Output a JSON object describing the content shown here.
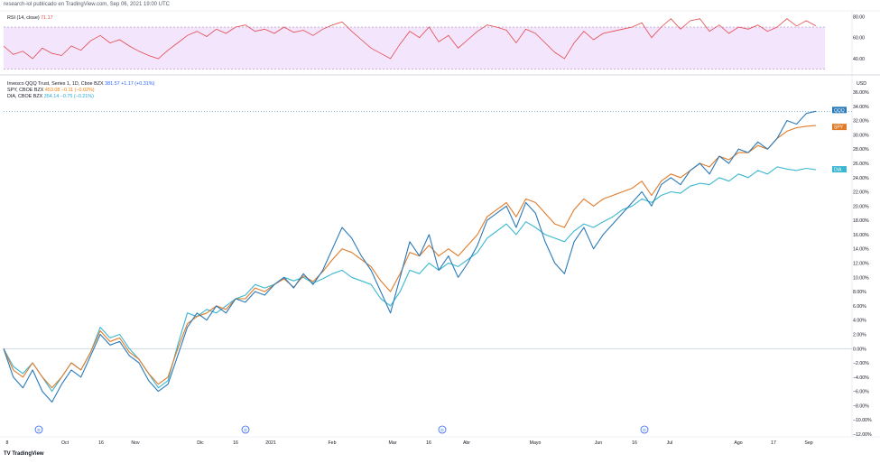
{
  "header": {
    "text": "research-iol publicado en TradingView.com, Sep 06, 2021 19:00 UTC"
  },
  "rsi_panel": {
    "label": "RSI (14, close)",
    "value": "71.17"
  },
  "legend": [
    {
      "name": "Invesco QQQ Trust, Series 1, 1D, Cboe BZX",
      "value": "381.57",
      "change": "+1.17 (+0.31%)",
      "color": "#2962ff"
    },
    {
      "name": "SPY, CBOE BZX",
      "value": "453.08",
      "change": "−0.11 (−0.02%)",
      "color": "#f57c00"
    },
    {
      "name": "DIA, CBOE BZX",
      "value": "354.14",
      "change": "−0.75 (−0.21%)",
      "color": "#26a6d9"
    }
  ],
  "axis": {
    "unit": "USD"
  },
  "footer": {
    "brand": "TradingView"
  },
  "colors": {
    "qqq": "#2b7ab8",
    "spy": "#e07b2a",
    "dia": "#3bb8d0",
    "rsi": "#e5484d",
    "rsi_fill": "#f3e5fb"
  },
  "chart_data": [
    {
      "type": "line",
      "x_ticks": [
        "8",
        "Oct",
        "16",
        "Nov",
        "Dic",
        "16",
        "2021",
        "Feb",
        "Mar",
        "16",
        "Abr",
        "Mayo",
        "Jun",
        "16",
        "Jul",
        "Ago",
        "17",
        "Sep"
      ],
      "y_ticks": [
        "34.00%",
        "32.00%",
        "30.00%",
        "28.00%",
        "26.00%",
        "24.00%",
        "22.00%",
        "20.00%",
        "18.00%",
        "16.00%",
        "14.00%",
        "12.00%",
        "10.00%",
        "8.00%",
        "6.00%",
        "4.00%",
        "2.00%",
        "0.00%",
        "−2.00%",
        "−4.00%",
        "−6.00%",
        "−8.00%",
        "−10.00%",
        "−12.00%"
      ],
      "y_top_label": "36.00%",
      "ylim": [
        -12,
        36
      ],
      "series": [
        {
          "name": "QQQ",
          "last_tag": "QQQ",
          "values": [
            0,
            -4,
            -5.5,
            -3,
            -6,
            -7.5,
            -5,
            -3,
            -4,
            -1,
            2,
            0.5,
            1,
            -1,
            -2,
            -4.5,
            -6,
            -5,
            -1,
            3,
            5,
            4,
            6,
            5,
            7,
            6.5,
            8,
            7.5,
            9,
            10,
            8.5,
            10.5,
            9,
            11,
            14,
            17,
            15.5,
            13,
            11,
            8,
            5,
            10,
            15,
            13,
            16,
            11,
            13,
            10,
            12,
            14.5,
            18,
            19,
            20,
            17,
            20.5,
            19,
            15,
            12,
            10.5,
            15,
            17,
            14,
            16,
            17.5,
            19,
            20.5,
            22,
            20,
            23,
            24,
            23,
            25,
            26,
            24.5,
            27,
            26,
            28,
            27.5,
            29,
            28,
            29.5,
            32,
            31.5,
            33,
            33.3
          ]
        },
        {
          "name": "SPY",
          "last_tag": "SPY",
          "values": [
            0,
            -3,
            -4,
            -2,
            -4,
            -5.5,
            -4,
            -2,
            -3,
            -0.5,
            2.5,
            1,
            1.5,
            -0.5,
            -1.5,
            -3.5,
            -5,
            -4,
            0,
            3.5,
            4.5,
            5,
            6,
            5.5,
            7,
            7,
            8.5,
            8,
            9,
            9.8,
            8.6,
            10.2,
            9.4,
            10.8,
            12.5,
            14,
            13.5,
            12.5,
            11.5,
            9.5,
            8,
            10.5,
            13.5,
            13,
            14.5,
            13,
            14,
            13,
            14.5,
            16,
            18.5,
            19.5,
            20.5,
            18.5,
            21,
            20.5,
            19,
            17.5,
            17,
            19.5,
            21,
            20,
            21,
            21.5,
            22,
            22.5,
            23.5,
            21.5,
            23.5,
            24.5,
            24,
            25,
            26,
            25.5,
            27,
            26.5,
            27.5,
            27.5,
            28.5,
            28,
            29.5,
            30.5,
            31,
            31.2,
            31.3
          ]
        },
        {
          "name": "DIA",
          "last_tag": "DIA",
          "values": [
            0,
            -2.5,
            -3.5,
            -2,
            -4,
            -6,
            -4,
            -2,
            -3,
            -0.5,
            3,
            1.5,
            2,
            0,
            -1.5,
            -3.5,
            -5.5,
            -4.5,
            0.5,
            5,
            4.5,
            5.5,
            5,
            6,
            7,
            7.5,
            9,
            8.5,
            9,
            10,
            9.5,
            10,
            9.2,
            9.8,
            10.5,
            11,
            10,
            9.5,
            9,
            7,
            6,
            8,
            11,
            10.5,
            12,
            11,
            12,
            11.5,
            12.5,
            13.5,
            15.5,
            16.5,
            17.5,
            16,
            17.8,
            17,
            16,
            15.5,
            15,
            16.5,
            17.5,
            17,
            17.8,
            18.5,
            19.5,
            20,
            21,
            20.5,
            21.5,
            22,
            21.8,
            22.8,
            23.2,
            23,
            24,
            23.5,
            24.5,
            24,
            25,
            24.5,
            25.5,
            25.2,
            25,
            25.3,
            25.1
          ]
        }
      ]
    },
    {
      "type": "line",
      "name": "RSI (14, close)",
      "y_ticks": [
        "80.00",
        "60.00",
        "40.00"
      ],
      "ylim": [
        28,
        82
      ],
      "band": [
        30,
        70
      ],
      "series": [
        {
          "name": "RSI",
          "values": [
            52,
            44,
            47,
            40,
            50,
            45,
            43,
            52,
            48,
            57,
            62,
            55,
            58,
            52,
            47,
            43,
            40,
            48,
            55,
            62,
            66,
            61,
            68,
            64,
            70,
            72,
            66,
            68,
            64,
            70,
            65,
            67,
            62,
            68,
            72,
            75,
            66,
            58,
            50,
            45,
            40,
            54,
            66,
            60,
            70,
            56,
            62,
            50,
            58,
            66,
            72,
            70,
            67,
            55,
            68,
            64,
            55,
            46,
            40,
            55,
            66,
            58,
            64,
            66,
            68,
            70,
            74,
            60,
            70,
            78,
            68,
            76,
            78,
            66,
            72,
            64,
            70,
            68,
            72,
            66,
            70,
            78,
            71,
            76,
            71.17
          ]
        }
      ]
    }
  ]
}
